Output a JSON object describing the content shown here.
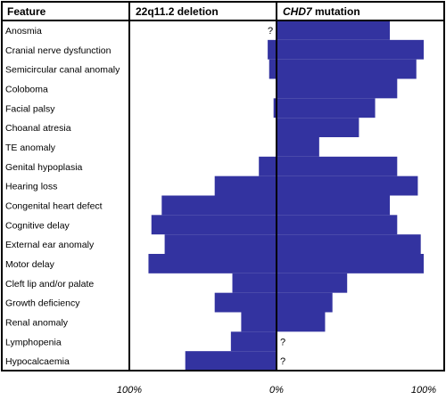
{
  "chart_data": {
    "type": "bar",
    "headers": {
      "feature": "Feature",
      "left": "22q11.2 deletion",
      "right_italic": "CHD7",
      "right_rest": " mutation"
    },
    "categories": [
      "Anosmia",
      "Cranial nerve dysfunction",
      "Semicircular canal anomaly",
      "Coloboma",
      "Facial palsy",
      "Choanal atresia",
      "TE anomaly",
      "Genital hypoplasia",
      "Hearing loss",
      "Congenital heart defect",
      "Cognitive delay",
      "External ear anomaly",
      "Motor delay",
      "Cleft lip and/or palate",
      "Growth deficiency",
      "Renal anomaly",
      "Lymphopenia",
      "Hypocalcaemia"
    ],
    "series": [
      {
        "name": "22q11.2 deletion",
        "values": [
          null,
          6,
          5,
          0,
          2,
          0,
          0,
          12,
          42,
          78,
          85,
          76,
          87,
          30,
          42,
          24,
          31,
          62
        ]
      },
      {
        "name": "CHD7 mutation",
        "values": [
          77,
          100,
          95,
          82,
          67,
          56,
          29,
          82,
          96,
          77,
          82,
          98,
          100,
          48,
          38,
          33,
          null,
          null
        ]
      }
    ],
    "unknown_marker": "?",
    "ticks": {
      "left": "100%",
      "center": "0%",
      "right": "100%"
    },
    "xlim": [
      -100,
      100
    ],
    "bar_color": "#3333a0"
  }
}
